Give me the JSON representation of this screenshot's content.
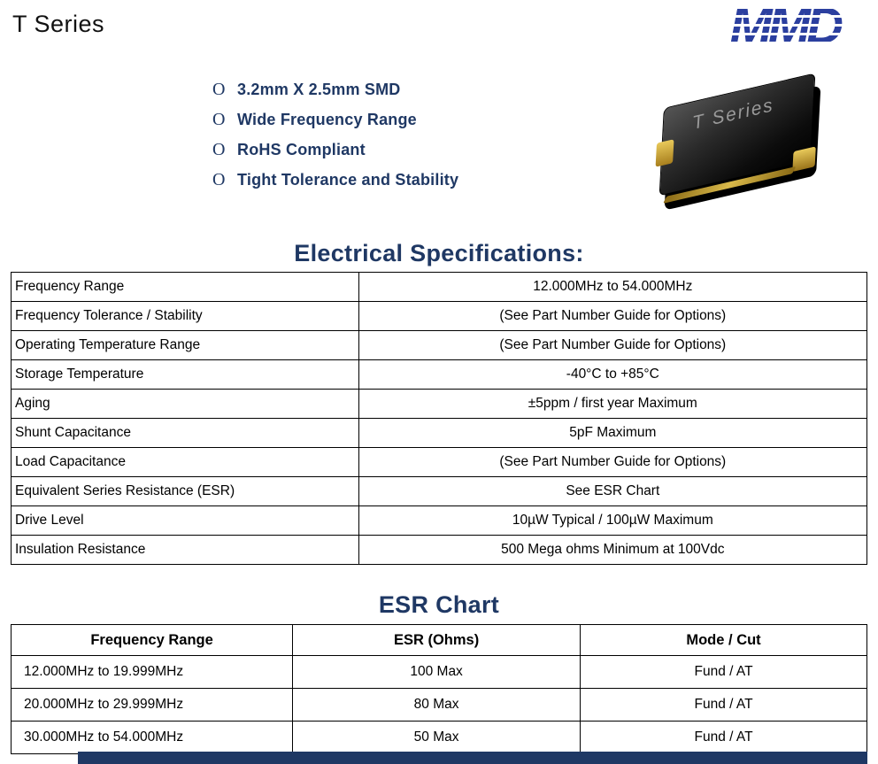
{
  "page": {
    "title": "T Series",
    "logo_text": "MMD"
  },
  "colors": {
    "heading_navy": "#1f3864",
    "logo_blue": "#2b3f9f",
    "chip_gold": "#d4af37",
    "footer_bar": "#1f3864"
  },
  "features": {
    "bullet_char": "O",
    "items": [
      {
        "label": "3.2mm X 2.5mm SMD"
      },
      {
        "label": "Wide Frequency Range"
      },
      {
        "label": "RoHS Compliant"
      },
      {
        "label": "Tight Tolerance and Stability"
      }
    ]
  },
  "product_image": {
    "label": "T Series"
  },
  "electrical_specs": {
    "heading": "Electrical Specifications:",
    "rows": [
      {
        "param": "Frequency Range",
        "value": "12.000MHz to 54.000MHz"
      },
      {
        "param": "Frequency Tolerance / Stability",
        "value": "(See Part Number Guide for Options)"
      },
      {
        "param": "Operating Temperature Range",
        "value": "(See Part Number Guide for Options)"
      },
      {
        "param": "Storage Temperature",
        "value": "-40°C to +85°C"
      },
      {
        "param": "Aging",
        "value": "±5ppm / first year Maximum"
      },
      {
        "param": "Shunt Capacitance",
        "value": "5pF Maximum"
      },
      {
        "param": "Load Capacitance",
        "value": "(See Part Number Guide for Options)"
      },
      {
        "param": "Equivalent Series Resistance (ESR)",
        "value": "See ESR Chart"
      },
      {
        "param": "Drive Level",
        "value": "10µW Typical / 100µW Maximum"
      },
      {
        "param": "Insulation Resistance",
        "value": "500 Mega ohms Minimum at 100Vdc"
      }
    ]
  },
  "esr_chart": {
    "heading": "ESR Chart",
    "headers": [
      "Frequency Range",
      "ESR (Ohms)",
      "Mode / Cut"
    ],
    "rows": [
      [
        "12.000MHz to 19.999MHz",
        "100 Max",
        "Fund / AT"
      ],
      [
        "20.000MHz to 29.999MHz",
        "80 Max",
        "Fund / AT"
      ],
      [
        "30.000MHz to 54.000MHz",
        "50 Max",
        "Fund / AT"
      ]
    ]
  }
}
